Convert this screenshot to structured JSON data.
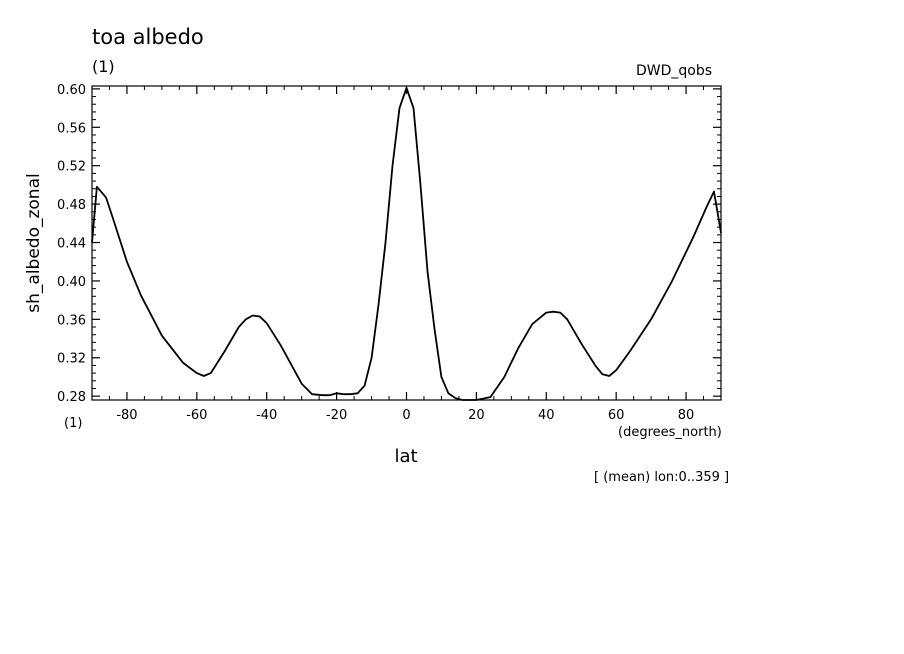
{
  "header": {
    "title": "toa albedo",
    "title_unit": "(1)",
    "dataset": "DWD_qobs"
  },
  "footer": {
    "y_unit": "(1)",
    "x_unit": "(degrees_north)",
    "note": "[ (mean) lon:0..359 ]"
  },
  "chart_data": {
    "type": "line",
    "title": "toa albedo",
    "xlabel": "lat",
    "ylabel": "sh_albedo_zonal",
    "xlim": [
      -90,
      90
    ],
    "ylim": [
      0.276,
      0.603
    ],
    "xticks": [
      -80,
      -60,
      -40,
      -20,
      0,
      20,
      40,
      60,
      80
    ],
    "yticks": [
      0.28,
      0.32,
      0.36,
      0.4,
      0.44,
      0.48,
      0.52,
      0.56,
      0.6
    ],
    "grid": false,
    "line_color": "#000000",
    "x": [
      -90,
      -88.6,
      -86,
      -84,
      -80,
      -76,
      -70,
      -64,
      -60,
      -58,
      -56,
      -52,
      -48,
      -46,
      -44,
      -42,
      -40,
      -36,
      -30,
      -27,
      -24,
      -22,
      -20,
      -18,
      -16,
      -14,
      -12,
      -10,
      -8,
      -6,
      -4,
      -2,
      0,
      2,
      4,
      6,
      8,
      10,
      12,
      14,
      16,
      20,
      24,
      28,
      32,
      36,
      40,
      42,
      44,
      46,
      50,
      54,
      56,
      58,
      60,
      64,
      70,
      76,
      82,
      86,
      88,
      90
    ],
    "y": [
      0.44,
      0.498,
      0.487,
      0.465,
      0.42,
      0.385,
      0.343,
      0.315,
      0.304,
      0.301,
      0.304,
      0.327,
      0.352,
      0.36,
      0.364,
      0.363,
      0.356,
      0.333,
      0.293,
      0.282,
      0.281,
      0.281,
      0.283,
      0.282,
      0.282,
      0.283,
      0.291,
      0.32,
      0.375,
      0.44,
      0.52,
      0.58,
      0.601,
      0.58,
      0.5,
      0.41,
      0.35,
      0.3,
      0.283,
      0.278,
      0.276,
      0.276,
      0.279,
      0.3,
      0.33,
      0.355,
      0.367,
      0.368,
      0.367,
      0.36,
      0.335,
      0.312,
      0.303,
      0.301,
      0.307,
      0.327,
      0.36,
      0.4,
      0.445,
      0.478,
      0.493,
      0.45
    ]
  }
}
